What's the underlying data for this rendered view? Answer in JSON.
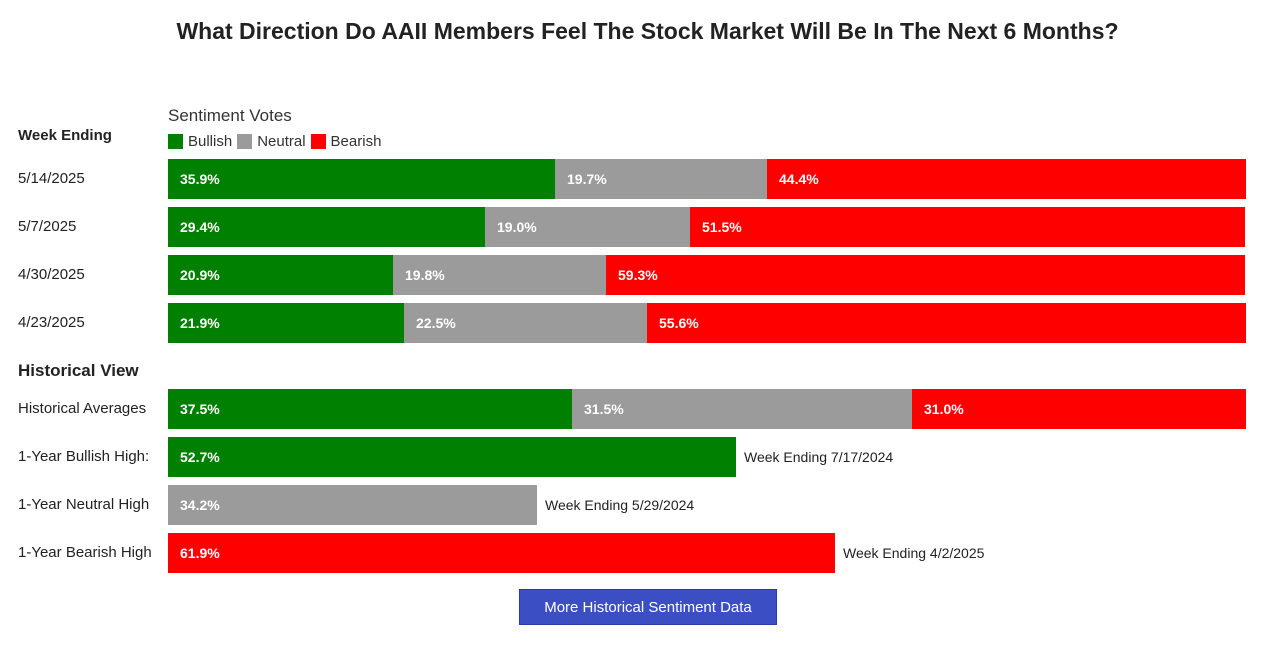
{
  "title": "What Direction Do AAII Members Feel The Stock Market Will Be In The Next 6 Months?",
  "sentiment_votes_label": "Sentiment Votes",
  "week_ending_label": "Week Ending",
  "historical_view_label": "Historical View",
  "legend": [
    {
      "label": "Bullish",
      "color": "#008000"
    },
    {
      "label": "Neutral",
      "color": "#9b9b9b"
    },
    {
      "label": "Bearish",
      "color": "#ff0000"
    }
  ],
  "button_label": "More Historical Sentiment Data",
  "chart_data": {
    "type": "bar",
    "orientation": "horizontal",
    "stacked": true,
    "series_names": [
      "Bullish",
      "Neutral",
      "Bearish"
    ],
    "colors": [
      "#008000",
      "#9b9b9b",
      "#ff0000"
    ],
    "weekly": [
      {
        "label": "5/14/2025",
        "values": [
          35.9,
          19.7,
          44.4
        ],
        "texts": [
          "35.9%",
          "19.7%",
          "44.4%"
        ]
      },
      {
        "label": "5/7/2025",
        "values": [
          29.4,
          19.0,
          51.5
        ],
        "texts": [
          "29.4%",
          "19.0%",
          "51.5%"
        ]
      },
      {
        "label": "4/30/2025",
        "values": [
          20.9,
          19.8,
          59.3
        ],
        "texts": [
          "20.9%",
          "19.8%",
          "59.3%"
        ]
      },
      {
        "label": "4/23/2025",
        "values": [
          21.9,
          22.5,
          55.6
        ],
        "texts": [
          "21.9%",
          "22.5%",
          "55.6%"
        ]
      }
    ],
    "historical": [
      {
        "label": "Historical Averages",
        "segments": [
          {
            "series": "Bullish",
            "value": 37.5,
            "text": "37.5%"
          },
          {
            "series": "Neutral",
            "value": 31.5,
            "text": "31.5%"
          },
          {
            "series": "Bearish",
            "value": 31.0,
            "text": "31.0%"
          }
        ],
        "note": ""
      },
      {
        "label": "1-Year Bullish High:",
        "segments": [
          {
            "series": "Bullish",
            "value": 52.7,
            "text": "52.7%"
          }
        ],
        "note": "Week Ending 7/17/2024"
      },
      {
        "label": "1-Year Neutral High",
        "segments": [
          {
            "series": "Neutral",
            "value": 34.2,
            "text": "34.2%"
          }
        ],
        "note": "Week Ending 5/29/2024"
      },
      {
        "label": "1-Year Bearish High",
        "segments": [
          {
            "series": "Bearish",
            "value": 61.9,
            "text": "61.9%"
          }
        ],
        "note": "Week Ending 4/2/2025"
      }
    ]
  }
}
